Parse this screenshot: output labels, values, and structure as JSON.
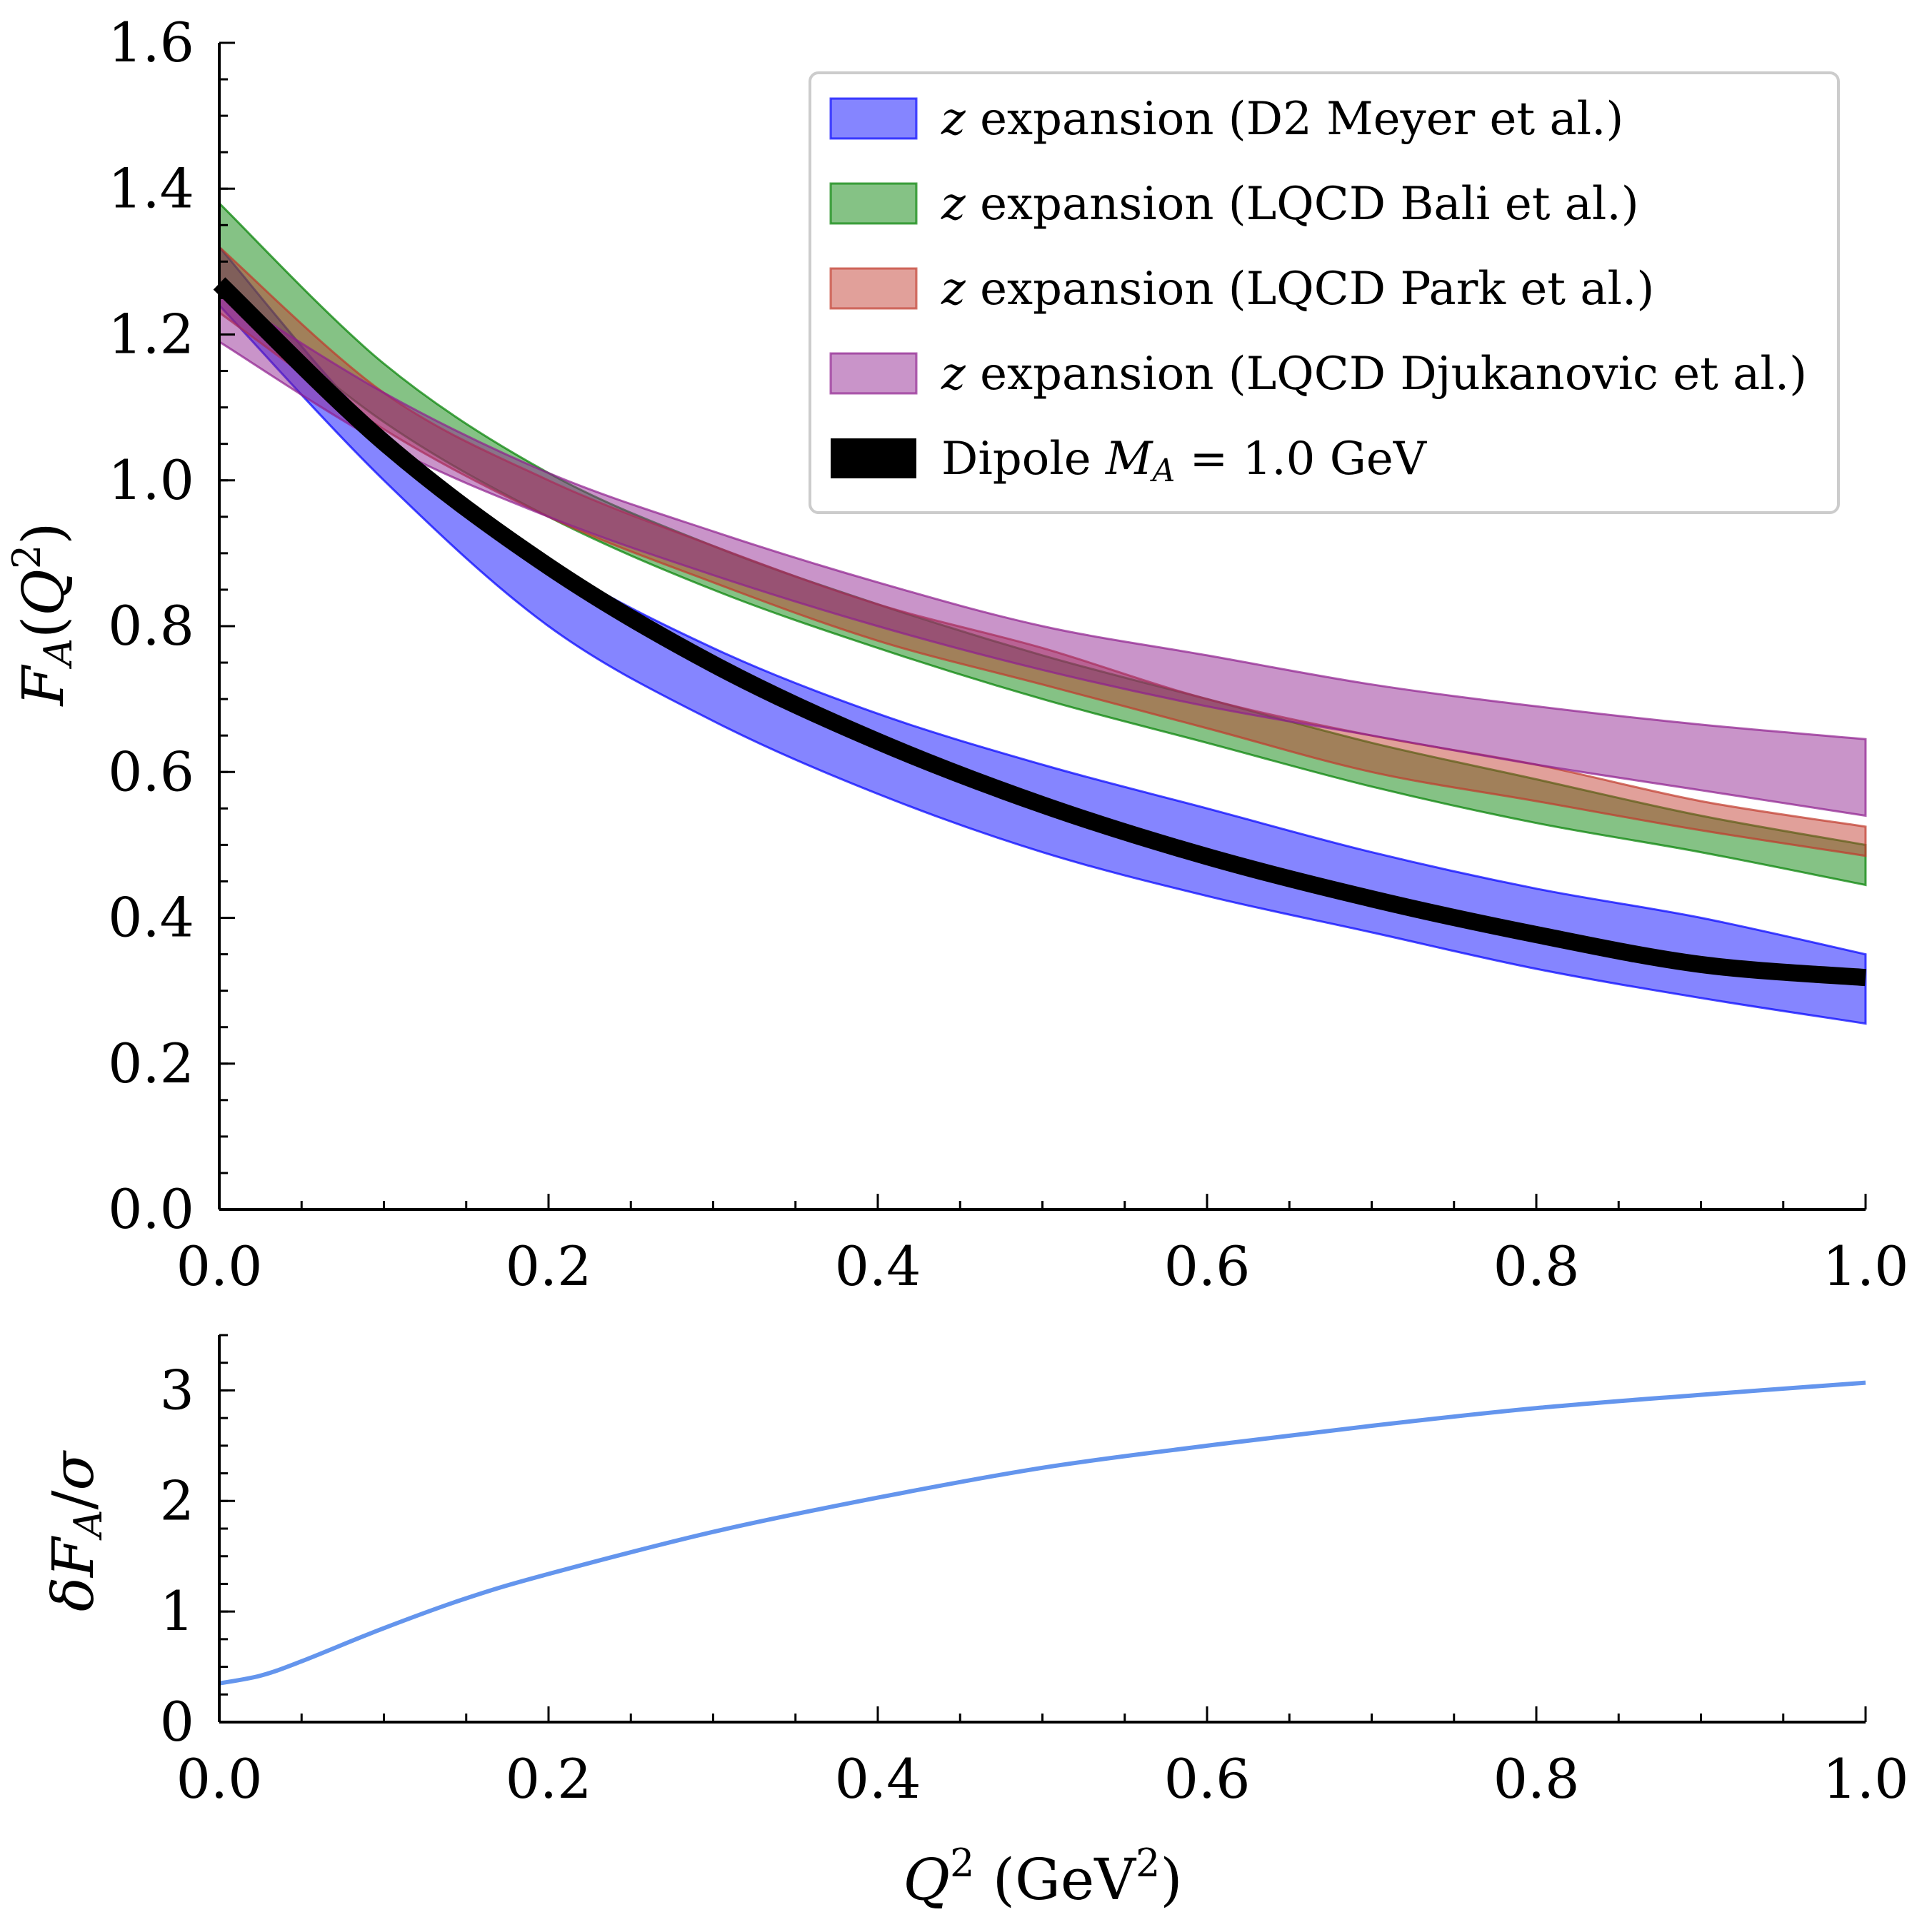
{
  "chart_data": [
    {
      "type": "area",
      "title": "",
      "xlabel": "Q² (GeV²)",
      "ylabel": "F_A(Q²)",
      "xlim": [
        0.0,
        1.0
      ],
      "ylim": [
        0.0,
        1.6
      ],
      "xticks": [
        "0.0",
        "0.2",
        "0.4",
        "0.6",
        "0.8",
        "1.0"
      ],
      "yticks": [
        "0.0",
        "0.2",
        "0.4",
        "0.6",
        "0.8",
        "1.0",
        "1.2",
        "1.4",
        "1.6"
      ],
      "x": [
        0.0,
        0.1,
        0.2,
        0.3,
        0.4,
        0.5,
        0.6,
        0.7,
        0.8,
        0.9,
        1.0
      ],
      "series": [
        {
          "name": "z expansion (D2 Meyer et al.)",
          "legend_math": "z",
          "legend_text": "expansion (D2 Meyer et al.)",
          "color": "#0000ff",
          "kind": "band",
          "lower": [
            1.24,
            1.0,
            0.8,
            0.67,
            0.57,
            0.49,
            0.43,
            0.38,
            0.33,
            0.29,
            0.255
          ],
          "upper": [
            1.32,
            1.06,
            0.89,
            0.77,
            0.68,
            0.61,
            0.55,
            0.49,
            0.44,
            0.4,
            0.35
          ]
        },
        {
          "name": "z expansion (LQCD Bali et al.)",
          "legend_math": "z",
          "legend_text": "expansion (LQCD Bali et al.)",
          "color": "#008000",
          "kind": "band",
          "lower": [
            1.26,
            1.08,
            0.95,
            0.85,
            0.77,
            0.7,
            0.64,
            0.58,
            0.53,
            0.49,
            0.445
          ],
          "upper": [
            1.38,
            1.16,
            1.01,
            0.91,
            0.83,
            0.76,
            0.7,
            0.64,
            0.59,
            0.54,
            0.5
          ]
        },
        {
          "name": "z expansion (LQCD Park et al.)",
          "legend_math": "z",
          "legend_text": "expansion (LQCD Park et al.)",
          "color": "#c0392b",
          "kind": "band",
          "lower": [
            1.23,
            1.07,
            0.95,
            0.86,
            0.78,
            0.72,
            0.66,
            0.6,
            0.56,
            0.52,
            0.485
          ],
          "upper": [
            1.32,
            1.12,
            1.0,
            0.91,
            0.83,
            0.77,
            0.7,
            0.65,
            0.61,
            0.56,
            0.525
          ]
        },
        {
          "name": "z expansion (LQCD Djukanovic et al.)",
          "legend_math": "z",
          "legend_text": "expansion (LQCD Djukanovic et al.)",
          "color": "#8e1f8e",
          "kind": "band",
          "lower": [
            1.19,
            1.05,
            0.95,
            0.87,
            0.8,
            0.74,
            0.69,
            0.65,
            0.61,
            0.575,
            0.54
          ],
          "upper": [
            1.26,
            1.12,
            1.01,
            0.93,
            0.86,
            0.8,
            0.76,
            0.72,
            0.69,
            0.665,
            0.645
          ]
        },
        {
          "name": "Dipole M_A = 1.0 GeV",
          "legend_text": "Dipole",
          "legend_math": "M_A = 1.0 GeV",
          "color": "#000000",
          "kind": "line",
          "values": [
            1.27,
            1.052,
            0.882,
            0.748,
            0.642,
            0.555,
            0.484,
            0.426,
            0.377,
            0.336,
            0.318
          ]
        }
      ],
      "legend_position": "upper right"
    },
    {
      "type": "line",
      "title": "",
      "xlabel": "Q² (GeV²)",
      "ylabel": "δF_A/σ",
      "xlim": [
        0.0,
        1.0
      ],
      "ylim": [
        0,
        3.5
      ],
      "xticks": [
        "0.0",
        "0.2",
        "0.4",
        "0.6",
        "0.8",
        "1.0"
      ],
      "yticks": [
        "0",
        "1",
        "2",
        "3"
      ],
      "series": [
        {
          "name": "δF_A/σ",
          "color": "#6495ed",
          "x": [
            0.0,
            0.025,
            0.05,
            0.1,
            0.15,
            0.2,
            0.3,
            0.4,
            0.5,
            0.6,
            0.7,
            0.8,
            0.9,
            1.0
          ],
          "values": [
            0.35,
            0.42,
            0.55,
            0.85,
            1.12,
            1.34,
            1.72,
            2.03,
            2.3,
            2.5,
            2.68,
            2.84,
            2.96,
            3.07
          ]
        }
      ]
    }
  ]
}
